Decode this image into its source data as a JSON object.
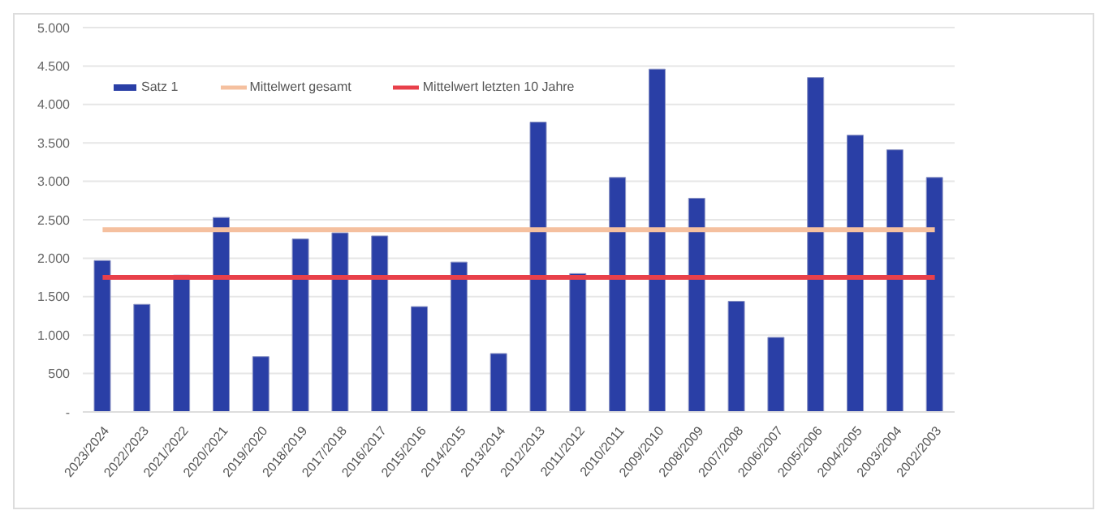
{
  "chart_data": {
    "type": "bar",
    "categories": [
      "2023/2024",
      "2022/2023",
      "2021/2022",
      "2020/2021",
      "2019/2020",
      "2018/2019",
      "2017/2018",
      "2016/2017",
      "2015/2016",
      "2014/2015",
      "2013/2014",
      "2012/2013",
      "2011/2012",
      "2010/2011",
      "2009/2010",
      "2008/2009",
      "2007/2008",
      "2006/2007",
      "2005/2006",
      "2004/2005",
      "2003/2004",
      "2002/2003"
    ],
    "series": [
      {
        "name": "Satz 1",
        "color": "#2a3fa6",
        "values": [
          1970,
          1400,
          1780,
          2530,
          720,
          2250,
          2330,
          2290,
          1370,
          1950,
          760,
          3770,
          1800,
          3050,
          4460,
          2780,
          1440,
          970,
          4350,
          3600,
          3410,
          3050
        ]
      },
      {
        "name": "Mittelwert gesamt",
        "type": "line",
        "color": "#f5c09f",
        "values": [
          2370,
          2370,
          2370,
          2370,
          2370,
          2370,
          2370,
          2370,
          2370,
          2370,
          2370,
          2370,
          2370,
          2370,
          2370,
          2370,
          2370,
          2370,
          2370,
          2370,
          2370,
          2370
        ]
      },
      {
        "name": "Mittelwert letzten 10 Jahre",
        "type": "line",
        "color": "#e8404a",
        "values": [
          1750,
          1750,
          1750,
          1750,
          1750,
          1750,
          1750,
          1750,
          1750,
          1750,
          1750,
          1750,
          1750,
          1750,
          1750,
          1750,
          1750,
          1750,
          1750,
          1750,
          1750,
          1750
        ]
      }
    ],
    "ylim": [
      0,
      5000
    ],
    "yticks": [
      {
        "value": 0,
        "label": "-"
      },
      {
        "value": 500,
        "label": "500"
      },
      {
        "value": 1000,
        "label": "1.000"
      },
      {
        "value": 1500,
        "label": "1.500"
      },
      {
        "value": 2000,
        "label": "2.000"
      },
      {
        "value": 2500,
        "label": "2.500"
      },
      {
        "value": 3000,
        "label": "3.000"
      },
      {
        "value": 3500,
        "label": "3.500"
      },
      {
        "value": 4000,
        "label": "4.000"
      },
      {
        "value": 4500,
        "label": "4.500"
      },
      {
        "value": 5000,
        "label": "5.000"
      }
    ],
    "grid": "y",
    "legend": "top left",
    "marker": "none",
    "line_style": "solid"
  }
}
